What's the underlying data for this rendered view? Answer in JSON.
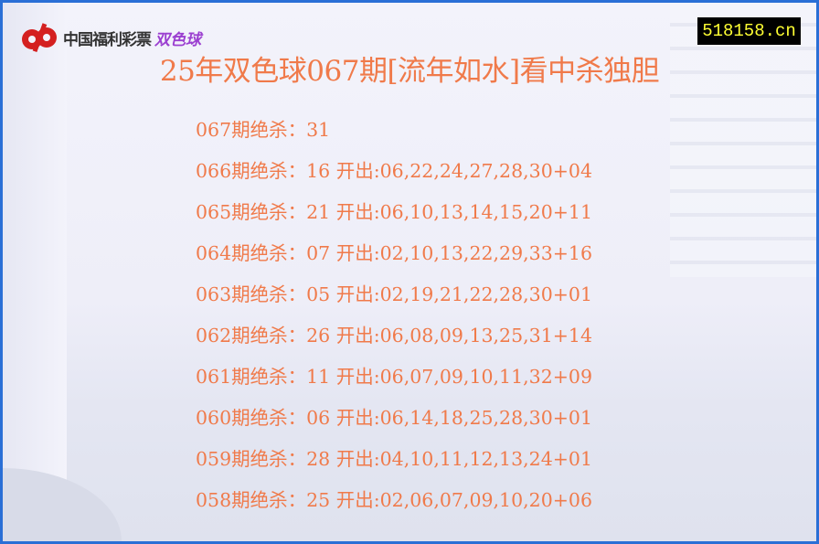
{
  "logo": {
    "text": "中国福利彩票",
    "accent": "双色球",
    "brand_color": "#d42020"
  },
  "badge": "518158.cn",
  "title": "25年双色球067期[流年如水]看中杀独胆",
  "rows": [
    "067期绝杀：31",
    "066期绝杀：16 开出:06,22,24,27,28,30+04",
    "065期绝杀：21 开出:06,10,13,14,15,20+11",
    "064期绝杀：07 开出:02,10,13,22,29,33+16",
    "063期绝杀：05 开出:02,19,21,22,28,30+01",
    "062期绝杀：26 开出:06,08,09,13,25,31+14",
    "061期绝杀：11 开出:06,07,09,10,11,32+09",
    "060期绝杀：06 开出:06,14,18,25,28,30+01",
    "059期绝杀：28 开出:04,10,11,12,13,24+01",
    "058期绝杀：25 开出:02,06,07,09,10,20+06"
  ]
}
